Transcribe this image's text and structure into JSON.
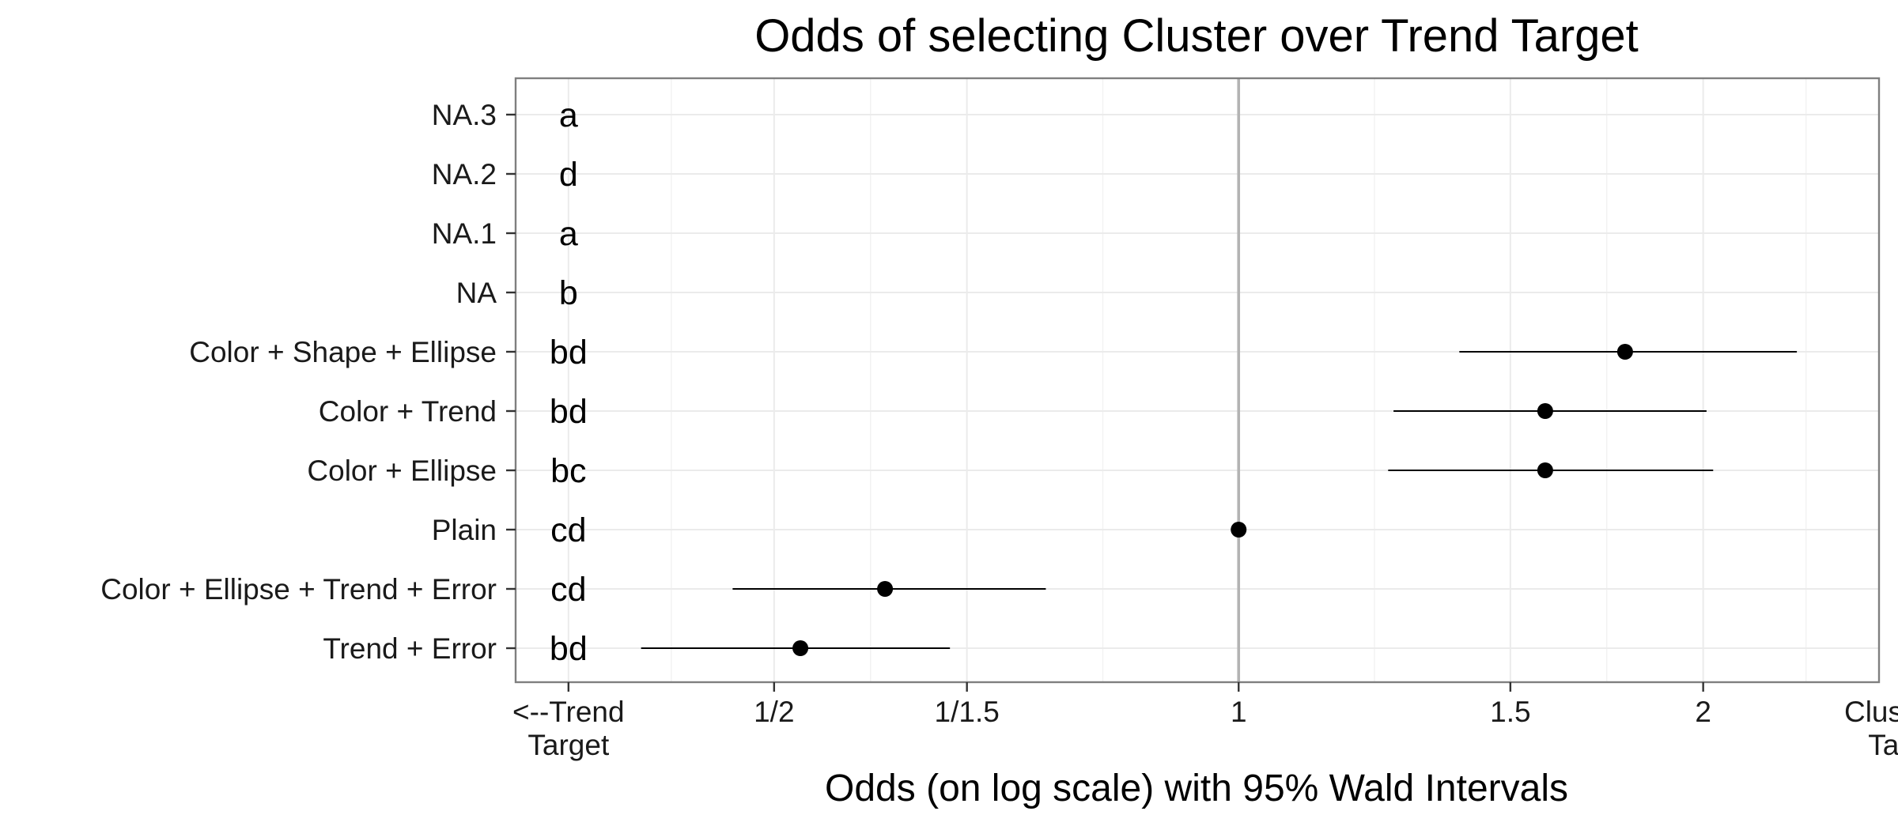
{
  "chart_data": {
    "type": "scatter",
    "title": "Odds of selecting Cluster over Trend Target",
    "xlabel": "Odds (on log scale) with 95% Wald Intervals",
    "ylabel": "",
    "x_scale": "log",
    "xlim": [
      0.34,
      2.6
    ],
    "x_ticks": [
      {
        "value": 0.3679,
        "label": [
          "<--Trend",
          "Target"
        ]
      },
      {
        "value": 0.5,
        "label": [
          "1/2"
        ]
      },
      {
        "value": 0.6667,
        "label": [
          "1/1.5"
        ]
      },
      {
        "value": 1,
        "label": [
          "1"
        ]
      },
      {
        "value": 1.5,
        "label": [
          "1.5"
        ]
      },
      {
        "value": 2,
        "label": [
          "2"
        ]
      },
      {
        "value": 2.7183,
        "label": [
          "Cluster-->",
          "Target"
        ]
      }
    ],
    "reference_line": 1,
    "grid": true,
    "letter_x": 0.3679,
    "rows": [
      {
        "label": "NA.3",
        "letters": "a",
        "estimate": null,
        "lower": null,
        "upper": null
      },
      {
        "label": "NA.2",
        "letters": "d",
        "estimate": null,
        "lower": null,
        "upper": null
      },
      {
        "label": "NA.1",
        "letters": "a",
        "estimate": null,
        "lower": null,
        "upper": null
      },
      {
        "label": "NA",
        "letters": "b",
        "estimate": null,
        "lower": null,
        "upper": null
      },
      {
        "label": "Color + Shape + Ellipse",
        "letters": "bd",
        "estimate": 1.78,
        "lower": 1.39,
        "upper": 2.3
      },
      {
        "label": "Color + Trend",
        "letters": "bd",
        "estimate": 1.58,
        "lower": 1.26,
        "upper": 2.01
      },
      {
        "label": "Color + Ellipse",
        "letters": "bc",
        "estimate": 1.58,
        "lower": 1.25,
        "upper": 2.03
      },
      {
        "label": "Plain",
        "letters": "cd",
        "estimate": 1.0,
        "lower": null,
        "upper": null
      },
      {
        "label": "Color + Ellipse + Trend + Error",
        "letters": "cd",
        "estimate": 0.59,
        "lower": 0.47,
        "upper": 0.75
      },
      {
        "label": "Trend + Error",
        "letters": "bd",
        "estimate": 0.52,
        "lower": 0.41,
        "upper": 0.65
      }
    ]
  }
}
